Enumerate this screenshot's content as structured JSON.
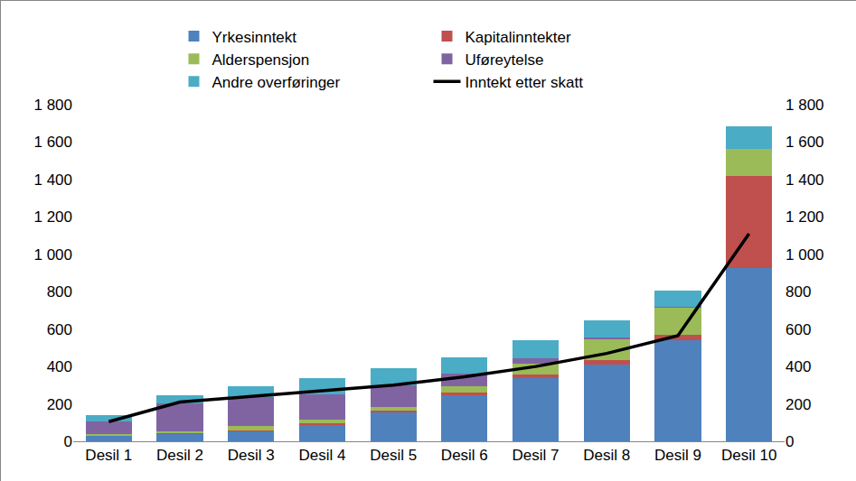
{
  "chart_data": {
    "type": "bar",
    "stacked": true,
    "grid": false,
    "legend": "top",
    "categories": [
      "Desil 1",
      "Desil 2",
      "Desil 3",
      "Desil 4",
      "Desil 5",
      "Desil 6",
      "Desil 7",
      "Desil 8",
      "Desil 9",
      "Desil 10"
    ],
    "series": [
      {
        "name": "Yrkesinntekt",
        "color": "#4F81BD",
        "values": [
          30,
          40,
          55,
          90,
          155,
          245,
          340,
          410,
          540,
          925
        ]
      },
      {
        "name": "Kapitalinntekter",
        "color": "#C0504D",
        "values": [
          3,
          5,
          5,
          8,
          10,
          15,
          15,
          25,
          30,
          495
        ]
      },
      {
        "name": "Alderspensjon",
        "color": "#9BBB59",
        "values": [
          5,
          10,
          20,
          20,
          20,
          35,
          60,
          110,
          145,
          145
        ]
      },
      {
        "name": "Uføreytelse",
        "color": "#8064A2",
        "values": [
          70,
          150,
          155,
          135,
          115,
          65,
          30,
          10,
          5,
          0
        ]
      },
      {
        "name": "Andre overføringer",
        "color": "#4BACC6",
        "values": [
          32,
          40,
          60,
          87,
          90,
          90,
          95,
          90,
          85,
          120
        ]
      },
      {
        "name": "Inntekt etter skatt",
        "type": "line",
        "color": "#000000",
        "axis": "y2",
        "values": [
          105,
          210,
          240,
          270,
          300,
          345,
          400,
          470,
          565,
          1110
        ]
      }
    ],
    "ylim": [
      0,
      1800
    ],
    "yticks": [
      0,
      200,
      400,
      600,
      800,
      {
        "value": 1000,
        "label": "1 000"
      },
      {
        "value": 1200,
        "label": "1 200"
      },
      {
        "value": 1400,
        "label": "1 400"
      },
      {
        "value": 1600,
        "label": "1 600"
      },
      {
        "value": 1800,
        "label": "1 800"
      }
    ],
    "y2lim": [
      0,
      1800
    ],
    "y2ticks": [
      0,
      200,
      400,
      600,
      800,
      {
        "value": 1000,
        "label": "1 000"
      },
      {
        "value": 1200,
        "label": "1 200"
      },
      {
        "value": 1400,
        "label": "1 400"
      },
      {
        "value": 1600,
        "label": "1 600"
      },
      {
        "value": 1800,
        "label": "1 800"
      }
    ]
  }
}
